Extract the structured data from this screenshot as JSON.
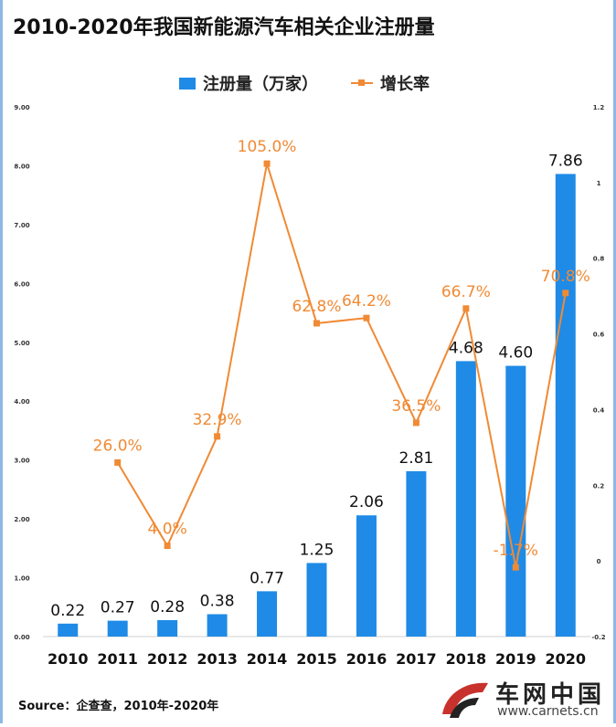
{
  "title": "2010-2020年我国新能源汽车相关企业注册量",
  "legend": {
    "bar_label": "注册量（万家）",
    "line_label": "增长率"
  },
  "source": "Source：企查查，2010年-2020年",
  "logo": {
    "name": "车网中国",
    "url": "www.carnets.cn"
  },
  "colors": {
    "bar": "#1f8be6",
    "line": "#f08a34",
    "bar_label": "#111111",
    "line_label": "#f08a34"
  },
  "chart_data": {
    "type": "bar+line",
    "categories": [
      "2010",
      "2011",
      "2012",
      "2013",
      "2014",
      "2015",
      "2016",
      "2017",
      "2018",
      "2019",
      "2020"
    ],
    "series": [
      {
        "name": "注册量（万家）",
        "type": "bar",
        "axis": "left",
        "values": [
          0.22,
          0.27,
          0.28,
          0.38,
          0.77,
          1.25,
          2.06,
          2.81,
          4.68,
          4.6,
          7.86
        ],
        "labels": [
          "0.22",
          "0.27",
          "0.28",
          "0.38",
          "0.77",
          "1.25",
          "2.06",
          "2.81",
          "4.68",
          "4.60",
          "7.86"
        ]
      },
      {
        "name": "增长率",
        "type": "line",
        "axis": "right",
        "values": [
          null,
          0.26,
          0.04,
          0.329,
          1.05,
          0.628,
          0.642,
          0.365,
          0.667,
          -0.017,
          0.708
        ],
        "labels": [
          null,
          "26.0%",
          "4.0%",
          "32.9%",
          "105.0%",
          "62.8%",
          "64.2%",
          "36.5%",
          "66.7%",
          "-1.7%",
          "70.8%"
        ]
      }
    ],
    "left_axis": {
      "min": 0,
      "max": 9,
      "step": 1,
      "tick_labels": [
        "0.00",
        "1.00",
        "2.00",
        "3.00",
        "4.00",
        "5.00",
        "6.00",
        "7.00",
        "8.00",
        "9.00"
      ]
    },
    "right_axis": {
      "min": -0.2,
      "max": 1.2,
      "step": 0.2,
      "tick_labels": [
        "-0.2",
        "0",
        "0.2",
        "0.4",
        "0.6",
        "0.8",
        "1",
        "1.2"
      ]
    },
    "grid": false,
    "legend_position": "top-center"
  }
}
